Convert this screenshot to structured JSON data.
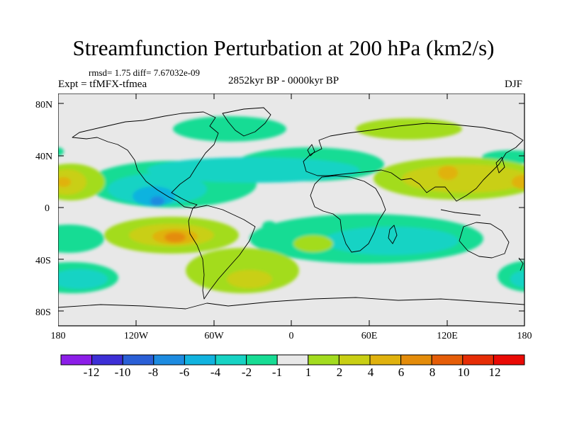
{
  "title": "Streamfunction Perturbation at 200 hPa (km2/s)",
  "stats": "rmsd= 1.75 diff= 7.67032e-09",
  "experiment": "Expt = tfMFX-tfmea",
  "period": "2852kyr BP - 0000kyr BP",
  "season": "DJF",
  "lat_labels": [
    "80N",
    "40N",
    "0",
    "40S",
    "80S"
  ],
  "lon_labels": [
    "180",
    "120W",
    "60W",
    "0",
    "60E",
    "120E",
    "180"
  ],
  "colorbar": {
    "labels": [
      "-12",
      "-10",
      "-8",
      "-6",
      "-4",
      "-2",
      "-1",
      "1",
      "2",
      "4",
      "6",
      "8",
      "10",
      "12"
    ],
    "colors": [
      "#8c1ee8",
      "#3d2fd6",
      "#2a5fd6",
      "#1d8be0",
      "#11b3df",
      "#17d3c4",
      "#17dc94",
      "#e8e8e8",
      "#a3dc1f",
      "#c9cf14",
      "#e0b20e",
      "#e48c0a",
      "#e55d08",
      "#e62d06",
      "#ea0a05"
    ]
  },
  "colors": {
    "background": "#ffffff",
    "ocean_neutral": "#e8e8e8",
    "coast": "#000000"
  }
}
